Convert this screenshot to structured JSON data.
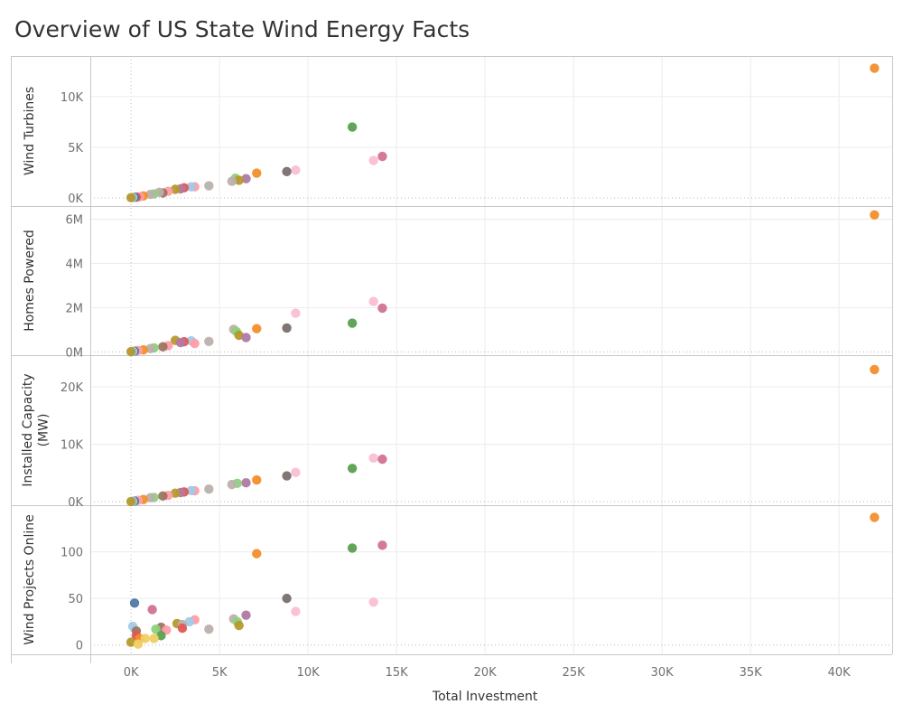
{
  "title": "Overview of US State Wind Energy Facts",
  "chart_data": {
    "type": "scatter",
    "xlabel": "Total Investment",
    "xlim": [
      -2300,
      43000
    ],
    "x_ticks": [
      {
        "value": 0,
        "label": "0K"
      },
      {
        "value": 5000,
        "label": "5K"
      },
      {
        "value": 10000,
        "label": "10K"
      },
      {
        "value": 15000,
        "label": "15K"
      },
      {
        "value": 20000,
        "label": "20K"
      },
      {
        "value": 25000,
        "label": "25K"
      },
      {
        "value": 30000,
        "label": "30K"
      },
      {
        "value": 35000,
        "label": "35K"
      },
      {
        "value": 40000,
        "label": "40K"
      }
    ],
    "grid": true,
    "colors": [
      "#4e79a7",
      "#f28e2b",
      "#e15759",
      "#76b7b2",
      "#59a14f",
      "#edc948",
      "#b07aa1",
      "#ff9da7",
      "#9c755f",
      "#bab0ac",
      "#d37295",
      "#8cd17d",
      "#a0cbe8",
      "#f1ce63",
      "#79706e",
      "#fabfd2",
      "#86bcb6",
      "#b6992d",
      "#d4a6c8",
      "#499894"
    ],
    "panels": [
      {
        "ylabel": "Wind Turbines",
        "ylim": [
          -800,
          14000
        ],
        "y_ticks": [
          {
            "value": 0,
            "label": "0K"
          },
          {
            "value": 5000,
            "label": "5K"
          },
          {
            "value": 10000,
            "label": "10K"
          }
        ],
        "points": [
          {
            "x": 42000,
            "y": 12800,
            "color": "#f28e2b"
          },
          {
            "x": 12500,
            "y": 7000,
            "color": "#59a14f"
          },
          {
            "x": 14200,
            "y": 4100,
            "color": "#d37295"
          },
          {
            "x": 13700,
            "y": 3700,
            "color": "#fabfd2"
          },
          {
            "x": 9300,
            "y": 2750,
            "color": "#fabfd2"
          },
          {
            "x": 8800,
            "y": 2600,
            "color": "#79706e"
          },
          {
            "x": 7100,
            "y": 2450,
            "color": "#f28e2b"
          },
          {
            "x": 6500,
            "y": 1900,
            "color": "#b07aa1"
          },
          {
            "x": 5900,
            "y": 1950,
            "color": "#8cd17d"
          },
          {
            "x": 6100,
            "y": 1750,
            "color": "#b6992d"
          },
          {
            "x": 5700,
            "y": 1650,
            "color": "#bab0ac"
          },
          {
            "x": 4400,
            "y": 1200,
            "color": "#bab0ac"
          },
          {
            "x": 3600,
            "y": 1100,
            "color": "#ff9da7"
          },
          {
            "x": 3400,
            "y": 1100,
            "color": "#a0cbe8"
          },
          {
            "x": 3000,
            "y": 1000,
            "color": "#e15759"
          },
          {
            "x": 2800,
            "y": 900,
            "color": "#b07aa1"
          },
          {
            "x": 2500,
            "y": 850,
            "color": "#b6992d"
          },
          {
            "x": 2100,
            "y": 650,
            "color": "#ff9da7"
          },
          {
            "x": 1800,
            "y": 500,
            "color": "#9c755f"
          },
          {
            "x": 1600,
            "y": 550,
            "color": "#bab0ac"
          },
          {
            "x": 1300,
            "y": 400,
            "color": "#8cd17d"
          },
          {
            "x": 1100,
            "y": 350,
            "color": "#bab0ac"
          },
          {
            "x": 700,
            "y": 200,
            "color": "#f28e2b"
          },
          {
            "x": 500,
            "y": 120,
            "color": "#ff9da7"
          },
          {
            "x": 300,
            "y": 80,
            "color": "#e15759"
          },
          {
            "x": 200,
            "y": 60,
            "color": "#4e79a7"
          },
          {
            "x": 100,
            "y": 50,
            "color": "#a0cbe8"
          },
          {
            "x": 0,
            "y": 30,
            "color": "#b6992d"
          }
        ]
      },
      {
        "ylabel": "Homes Powered",
        "ylim": [
          -150000,
          6600000
        ],
        "y_ticks": [
          {
            "value": 0,
            "label": "0M"
          },
          {
            "value": 2000000,
            "label": "2M"
          },
          {
            "value": 4000000,
            "label": "4M"
          },
          {
            "value": 6000000,
            "label": "6M"
          }
        ],
        "points": [
          {
            "x": 42000,
            "y": 6200000,
            "color": "#f28e2b"
          },
          {
            "x": 13700,
            "y": 2280000,
            "color": "#fabfd2"
          },
          {
            "x": 14200,
            "y": 1980000,
            "color": "#d37295"
          },
          {
            "x": 9300,
            "y": 1750000,
            "color": "#fabfd2"
          },
          {
            "x": 12500,
            "y": 1300000,
            "color": "#59a14f"
          },
          {
            "x": 8800,
            "y": 1080000,
            "color": "#79706e"
          },
          {
            "x": 7100,
            "y": 1050000,
            "color": "#f28e2b"
          },
          {
            "x": 5800,
            "y": 1020000,
            "color": "#bab0ac"
          },
          {
            "x": 5950,
            "y": 920000,
            "color": "#8cd17d"
          },
          {
            "x": 6100,
            "y": 750000,
            "color": "#b6992d"
          },
          {
            "x": 6500,
            "y": 650000,
            "color": "#b07aa1"
          },
          {
            "x": 2500,
            "y": 520000,
            "color": "#b6992d"
          },
          {
            "x": 3400,
            "y": 500000,
            "color": "#a0cbe8"
          },
          {
            "x": 4400,
            "y": 470000,
            "color": "#bab0ac"
          },
          {
            "x": 3000,
            "y": 460000,
            "color": "#e15759"
          },
          {
            "x": 2800,
            "y": 420000,
            "color": "#b07aa1"
          },
          {
            "x": 3600,
            "y": 380000,
            "color": "#ff9da7"
          },
          {
            "x": 2100,
            "y": 280000,
            "color": "#ff9da7"
          },
          {
            "x": 1800,
            "y": 230000,
            "color": "#9c755f"
          },
          {
            "x": 1300,
            "y": 180000,
            "color": "#8cd17d"
          },
          {
            "x": 1100,
            "y": 150000,
            "color": "#bab0ac"
          },
          {
            "x": 700,
            "y": 90000,
            "color": "#f28e2b"
          },
          {
            "x": 400,
            "y": 60000,
            "color": "#ff9da7"
          },
          {
            "x": 200,
            "y": 30000,
            "color": "#4e79a7"
          },
          {
            "x": 100,
            "y": 20000,
            "color": "#a0cbe8"
          },
          {
            "x": 0,
            "y": 10000,
            "color": "#b6992d"
          }
        ]
      },
      {
        "ylabel": "Installed Capacity (MW)",
        "ylabel_lines": [
          "Installed Capacity",
          "(MW)"
        ],
        "ylim": [
          -600,
          25500
        ],
        "y_ticks": [
          {
            "value": 0,
            "label": "0K"
          },
          {
            "value": 10000,
            "label": "10K"
          },
          {
            "value": 20000,
            "label": "20K"
          }
        ],
        "points": [
          {
            "x": 42000,
            "y": 23000,
            "color": "#f28e2b"
          },
          {
            "x": 13700,
            "y": 7600,
            "color": "#fabfd2"
          },
          {
            "x": 14200,
            "y": 7400,
            "color": "#d37295"
          },
          {
            "x": 12500,
            "y": 5800,
            "color": "#59a14f"
          },
          {
            "x": 9300,
            "y": 5100,
            "color": "#fabfd2"
          },
          {
            "x": 8800,
            "y": 4500,
            "color": "#79706e"
          },
          {
            "x": 7100,
            "y": 3800,
            "color": "#f28e2b"
          },
          {
            "x": 6500,
            "y": 3300,
            "color": "#b07aa1"
          },
          {
            "x": 6000,
            "y": 3200,
            "color": "#8cd17d"
          },
          {
            "x": 5700,
            "y": 3000,
            "color": "#bab0ac"
          },
          {
            "x": 4400,
            "y": 2200,
            "color": "#bab0ac"
          },
          {
            "x": 3600,
            "y": 1900,
            "color": "#ff9da7"
          },
          {
            "x": 3400,
            "y": 1950,
            "color": "#a0cbe8"
          },
          {
            "x": 3000,
            "y": 1700,
            "color": "#e15759"
          },
          {
            "x": 2800,
            "y": 1600,
            "color": "#b07aa1"
          },
          {
            "x": 2500,
            "y": 1500,
            "color": "#b6992d"
          },
          {
            "x": 2100,
            "y": 1100,
            "color": "#ff9da7"
          },
          {
            "x": 1800,
            "y": 1000,
            "color": "#9c755f"
          },
          {
            "x": 1300,
            "y": 750,
            "color": "#8cd17d"
          },
          {
            "x": 1100,
            "y": 700,
            "color": "#bab0ac"
          },
          {
            "x": 700,
            "y": 400,
            "color": "#f28e2b"
          },
          {
            "x": 400,
            "y": 250,
            "color": "#ff9da7"
          },
          {
            "x": 200,
            "y": 120,
            "color": "#4e79a7"
          },
          {
            "x": 100,
            "y": 80,
            "color": "#a0cbe8"
          },
          {
            "x": 0,
            "y": 40,
            "color": "#b6992d"
          }
        ]
      },
      {
        "ylabel": "Wind Projects Online",
        "ylim": [
          -10,
          150
        ],
        "y_ticks": [
          {
            "value": 0,
            "label": "0"
          },
          {
            "value": 50,
            "label": "50"
          },
          {
            "value": 100,
            "label": "100"
          }
        ],
        "points": [
          {
            "x": 42000,
            "y": 137,
            "color": "#f28e2b"
          },
          {
            "x": 14200,
            "y": 107,
            "color": "#d37295"
          },
          {
            "x": 12500,
            "y": 104,
            "color": "#59a14f"
          },
          {
            "x": 7100,
            "y": 98,
            "color": "#f28e2b"
          },
          {
            "x": 8800,
            "y": 50,
            "color": "#79706e"
          },
          {
            "x": 13700,
            "y": 46,
            "color": "#fabfd2"
          },
          {
            "x": 200,
            "y": 45,
            "color": "#4e79a7"
          },
          {
            "x": 1200,
            "y": 38,
            "color": "#d37295"
          },
          {
            "x": 9300,
            "y": 36,
            "color": "#fabfd2"
          },
          {
            "x": 6500,
            "y": 32,
            "color": "#b07aa1"
          },
          {
            "x": 5800,
            "y": 28,
            "color": "#bab0ac"
          },
          {
            "x": 3600,
            "y": 27,
            "color": "#ff9da7"
          },
          {
            "x": 3300,
            "y": 25,
            "color": "#a0cbe8"
          },
          {
            "x": 6000,
            "y": 25,
            "color": "#8cd17d"
          },
          {
            "x": 2600,
            "y": 23,
            "color": "#b6992d"
          },
          {
            "x": 2900,
            "y": 22,
            "color": "#bab0ac"
          },
          {
            "x": 6100,
            "y": 21,
            "color": "#b6992d"
          },
          {
            "x": 100,
            "y": 20,
            "color": "#a0cbe8"
          },
          {
            "x": 1700,
            "y": 19,
            "color": "#9c755f"
          },
          {
            "x": 2900,
            "y": 18,
            "color": "#e15759"
          },
          {
            "x": 1400,
            "y": 17,
            "color": "#8cd17d"
          },
          {
            "x": 4400,
            "y": 17,
            "color": "#bab0ac"
          },
          {
            "x": 2000,
            "y": 16,
            "color": "#ff9da7"
          },
          {
            "x": 300,
            "y": 15,
            "color": "#9c755f"
          },
          {
            "x": 300,
            "y": 10,
            "color": "#e15759"
          },
          {
            "x": 1700,
            "y": 10,
            "color": "#59a14f"
          },
          {
            "x": 500,
            "y": 7,
            "color": "#f28e2b"
          },
          {
            "x": 800,
            "y": 7,
            "color": "#f1ce63"
          },
          {
            "x": 1300,
            "y": 7,
            "color": "#f1ce63"
          },
          {
            "x": 0,
            "y": 3,
            "color": "#b6992d"
          },
          {
            "x": 400,
            "y": 1,
            "color": "#f1ce63"
          }
        ]
      }
    ]
  }
}
